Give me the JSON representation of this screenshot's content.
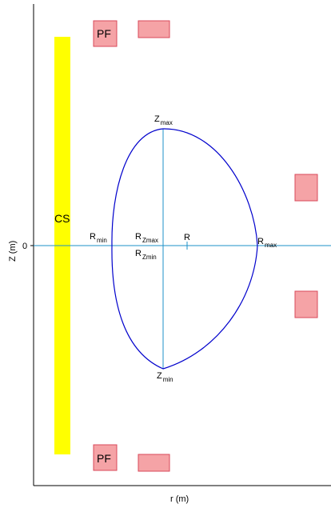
{
  "axes": {
    "x_label": "r (m)",
    "y_label": "Z (m)",
    "zero_tick": "0"
  },
  "coils": {
    "central_solenoid_label": "CS",
    "poloidal_field_label": "PF"
  },
  "plasma_points": {
    "z_max": {
      "main": "Z",
      "sub": "max"
    },
    "z_min": {
      "main": "Z",
      "sub": "min"
    },
    "r_min": {
      "main": "R",
      "sub": "min"
    },
    "r_max": {
      "main": "R",
      "sub": "max"
    },
    "r_zmax": {
      "main": "R",
      "sub": "Zmax"
    },
    "r_zmin": {
      "main": "R",
      "sub": "Zmin"
    },
    "r_center": {
      "main": "R"
    }
  },
  "colors": {
    "central_solenoid": "#ffff00",
    "pf_coil_fill": "#f5a3a6",
    "pf_coil_stroke": "#d9485a",
    "plasma_boundary": "#0000cc",
    "reference_lines": "#1e90c8"
  }
}
